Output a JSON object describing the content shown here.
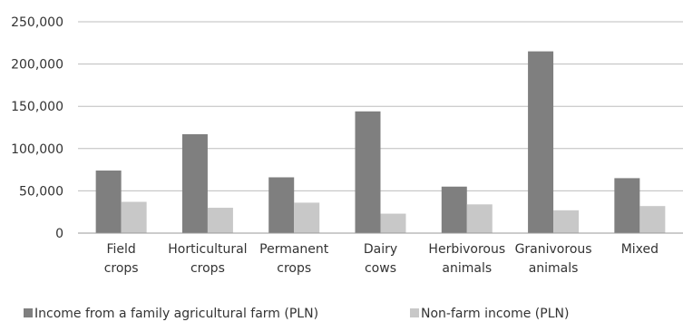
{
  "chart_data": {
    "type": "bar",
    "categories": [
      [
        "Field",
        "crops"
      ],
      [
        "Horticultural",
        "crops"
      ],
      [
        "Permanent",
        "crops"
      ],
      [
        "Dairy",
        "cows"
      ],
      [
        "Herbivorous",
        "animals"
      ],
      [
        "Granivorous",
        "animals"
      ],
      [
        "Mixed"
      ]
    ],
    "series": [
      {
        "name": "Income from a family agricultural farm (PLN)",
        "color": "#7f7f7f",
        "values": [
          74000,
          117000,
          66000,
          144000,
          55000,
          215000,
          65000
        ]
      },
      {
        "name": "Non-farm income (PLN)",
        "color": "#c8c8c8",
        "values": [
          37000,
          30000,
          36000,
          23000,
          34000,
          27000,
          32000
        ]
      }
    ],
    "y_ticks": [
      "0",
      "50,000",
      "100,000",
      "150,000",
      "200,000",
      "250,000"
    ],
    "ylim": [
      0,
      250000
    ],
    "grid": true,
    "legend_position": "bottom"
  }
}
